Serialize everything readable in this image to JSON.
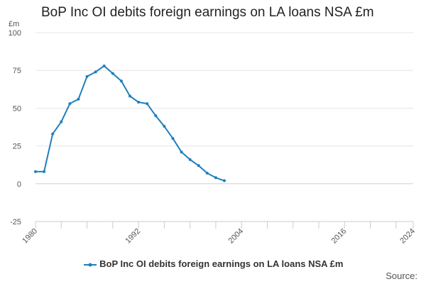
{
  "chart_data": {
    "type": "line",
    "title": "BoP Inc OI debits foreign earnings on LA loans NSA £m",
    "ylabel": "£m",
    "xlabel": "",
    "ylim": [
      -25,
      100
    ],
    "xlim": [
      1980,
      2024
    ],
    "y_ticks": [
      -25,
      0,
      25,
      50,
      75,
      100
    ],
    "x_tick_labels": [
      1980,
      1992,
      2004,
      2016,
      2024
    ],
    "grid": "horizontal",
    "legend_placement": "bottom",
    "series": [
      {
        "name": "BoP Inc OI debits foreign earnings on LA loans NSA £m",
        "color": "#1f7fbd",
        "x": [
          1980,
          1981,
          1982,
          1983,
          1984,
          1985,
          1986,
          1987,
          1988,
          1989,
          1990,
          1991,
          1992,
          1993,
          1994,
          1995,
          1996,
          1997,
          1998,
          1999,
          2000,
          2001,
          2002
        ],
        "values": [
          8,
          8,
          33,
          41,
          53,
          56,
          71,
          74,
          78,
          73,
          68,
          58,
          54,
          53,
          45,
          38,
          30,
          21,
          16,
          12,
          7,
          4,
          2
        ]
      }
    ]
  },
  "footer": {
    "source_label": "Source:"
  }
}
